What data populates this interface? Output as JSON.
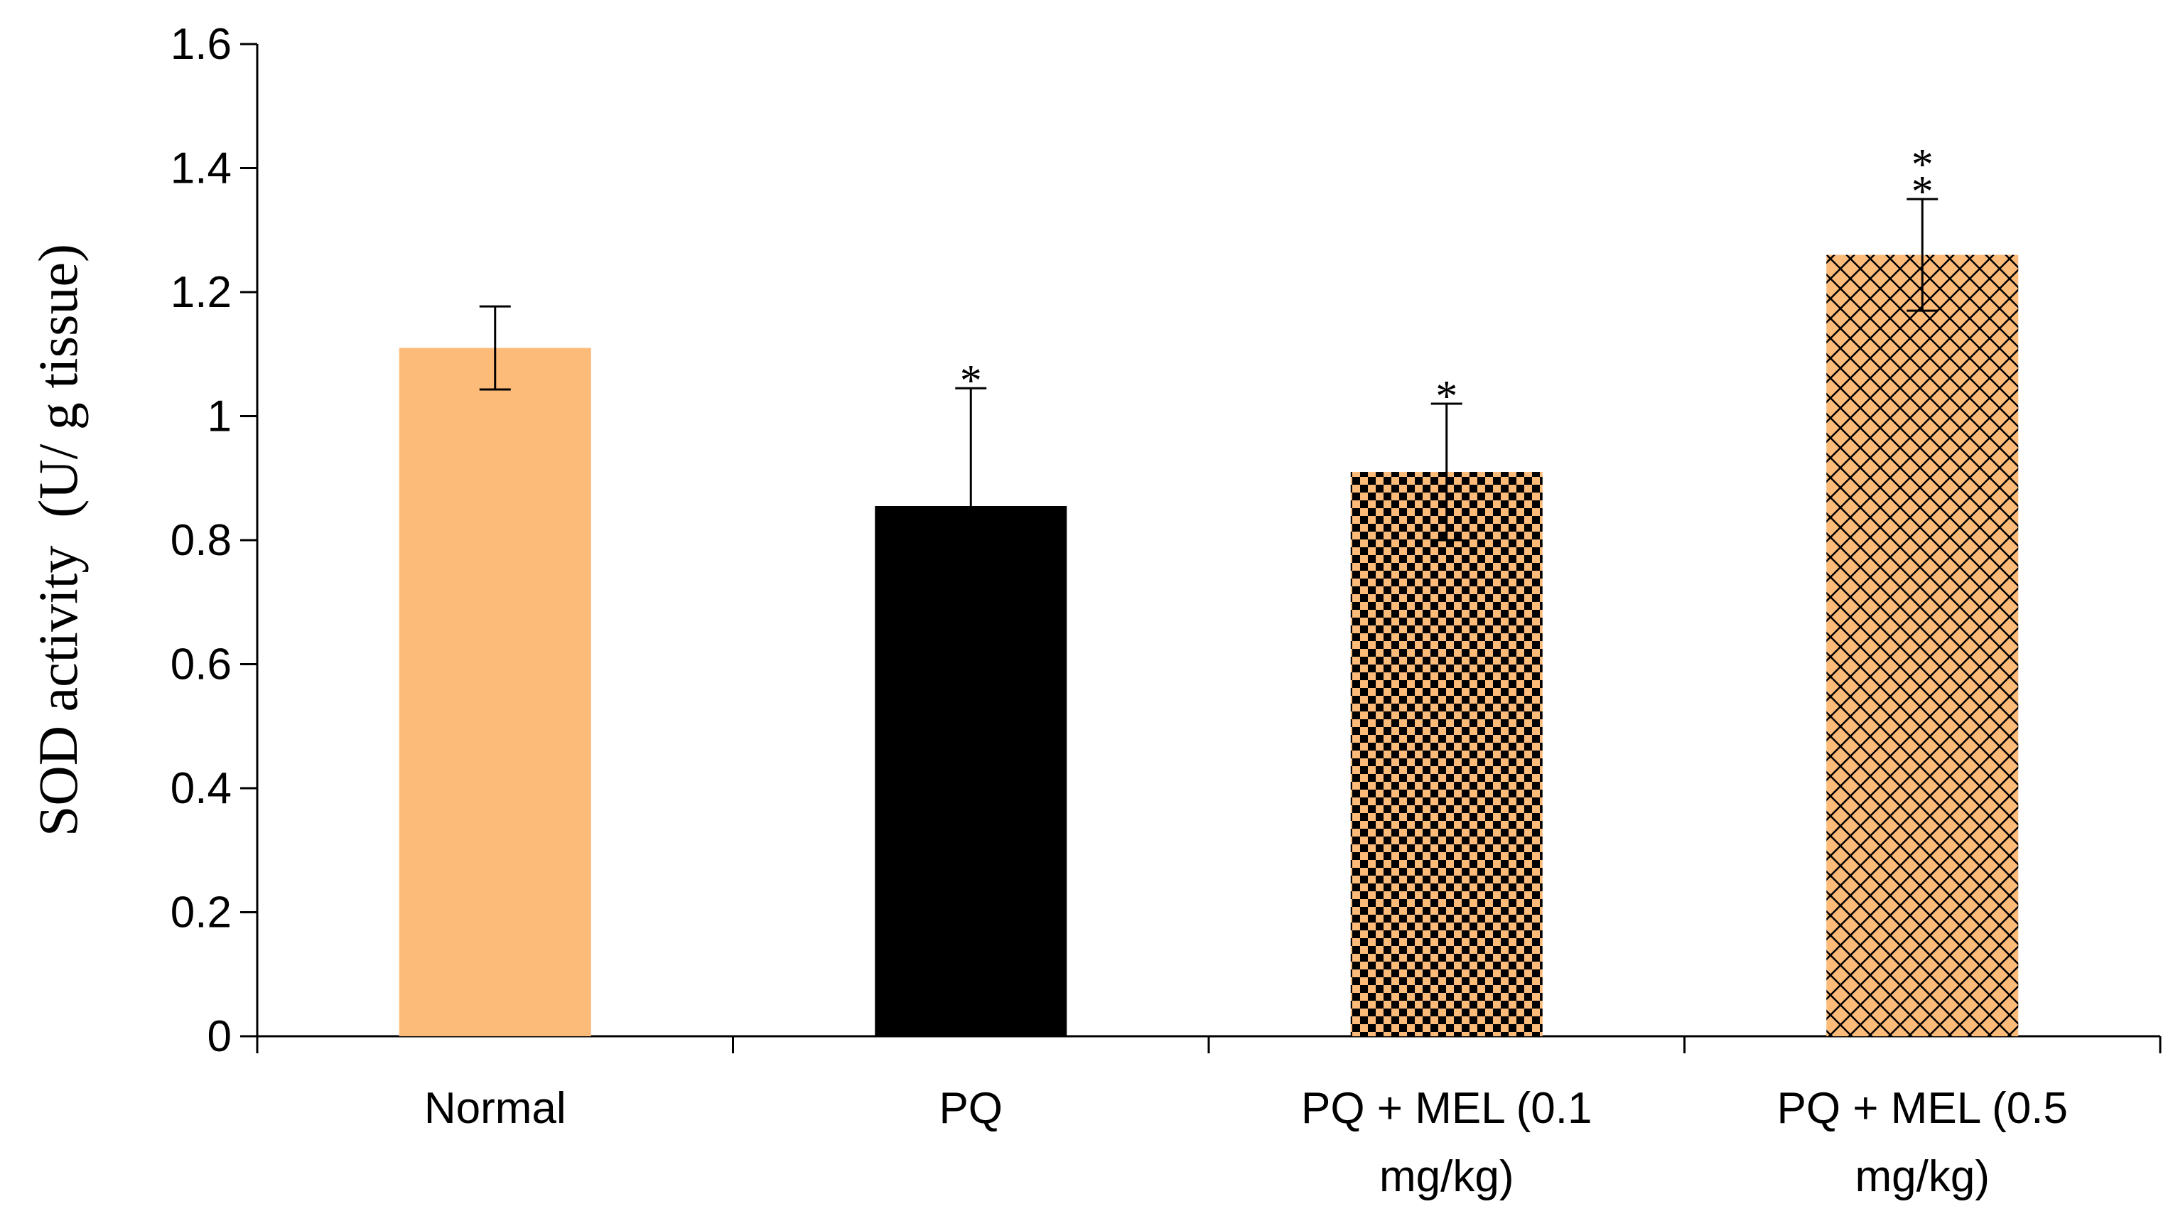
{
  "chart_data": {
    "type": "bar",
    "title": "",
    "xlabel": "",
    "ylabel": "SOD activity  (U/ g tissue)",
    "ylim": [
      0,
      1.6
    ],
    "yticks": [
      "0",
      "0.2",
      "0.4",
      "0.6",
      "0.8",
      "1",
      "1.2",
      "1.4",
      "1.6"
    ],
    "categories": [
      {
        "lines": [
          "Normal"
        ]
      },
      {
        "lines": [
          "PQ"
        ]
      },
      {
        "lines": [
          "PQ + MEL (0.1",
          "mg/kg)"
        ]
      },
      {
        "lines": [
          "PQ + MEL (0.5",
          "mg/kg)"
        ]
      }
    ],
    "values": [
      1.11,
      0.855,
      0.91,
      1.26
    ],
    "errors": [
      0.067,
      0.19,
      0.11,
      0.09
    ],
    "significance": [
      "",
      "*",
      "*",
      "**"
    ],
    "fills": [
      "solid-peach",
      "solid-black",
      "checker-peach-black",
      "crosshatch-peach"
    ],
    "colors": {
      "peach": "#FDBB7A",
      "black": "#000000"
    }
  }
}
